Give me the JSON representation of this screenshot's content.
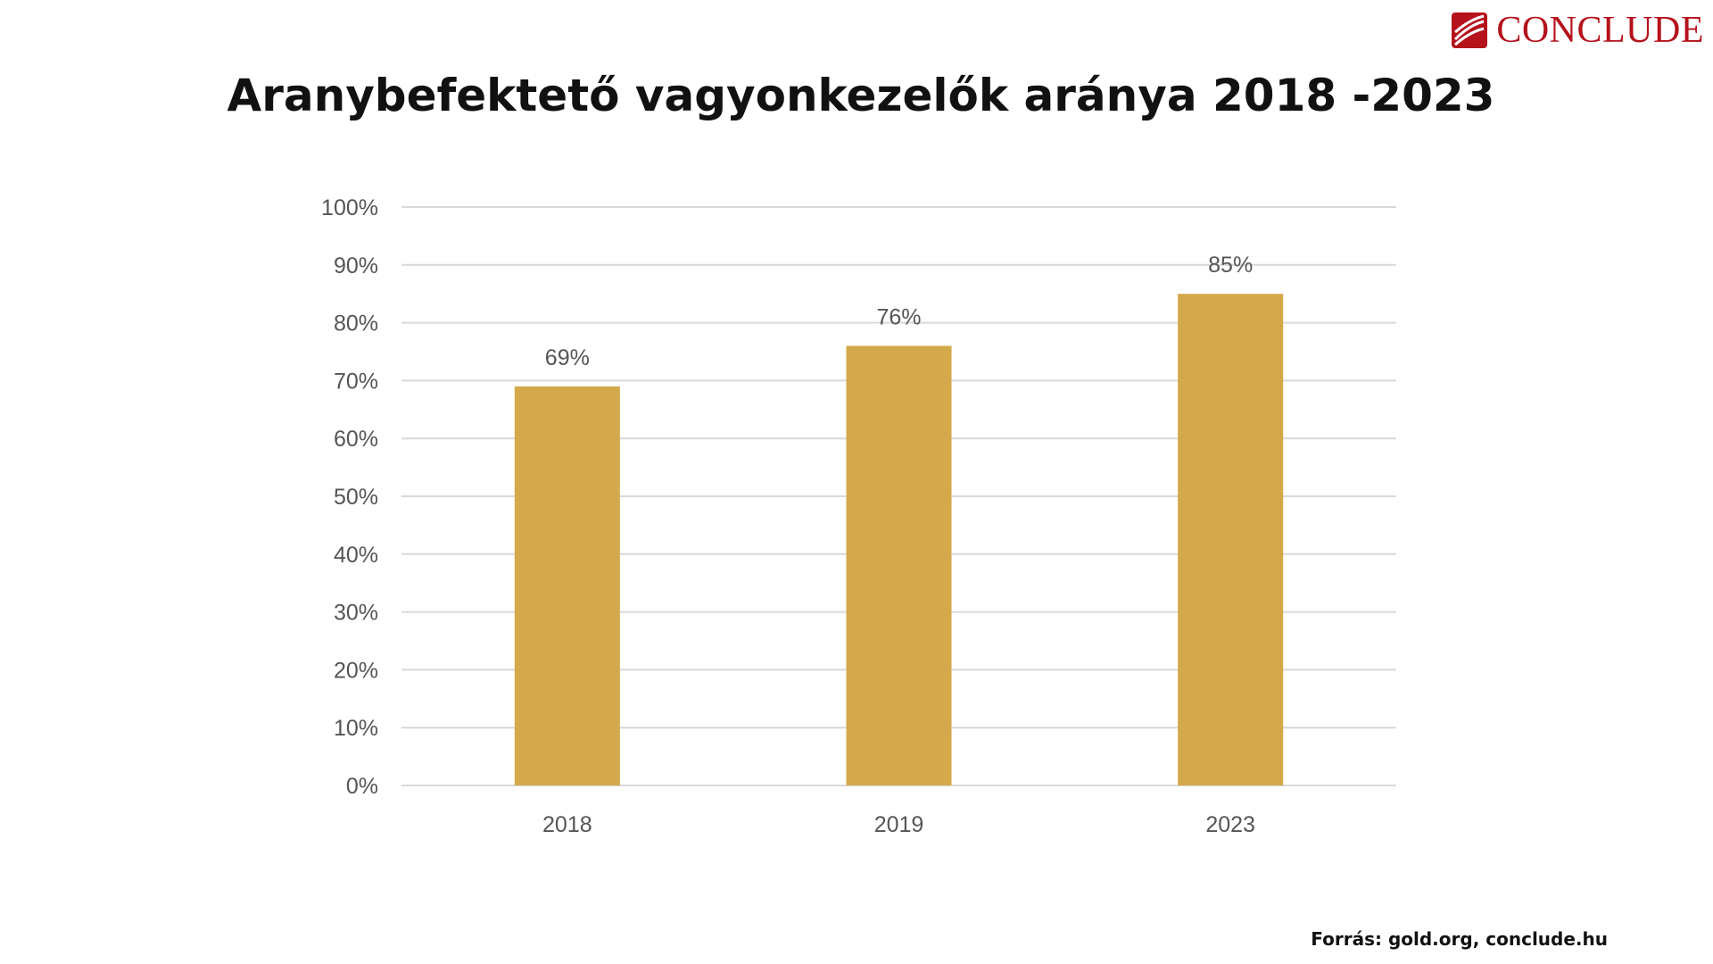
{
  "brand": {
    "name": "CONCLUDE",
    "color": "#b5121b",
    "icon": "conclude-logo-icon"
  },
  "title": "Aranybefektető vagyonkezelők aránya 2018 -2023",
  "source": "Forrás: gold.org, conclude.hu",
  "chart_data": {
    "type": "bar",
    "categories": [
      "2018",
      "2019",
      "2023"
    ],
    "values": [
      69,
      76,
      85
    ],
    "data_labels": [
      "69%",
      "76%",
      "85%"
    ],
    "ylim": [
      0,
      100
    ],
    "yticks": [
      0,
      10,
      20,
      30,
      40,
      50,
      60,
      70,
      80,
      90,
      100
    ],
    "ytick_labels": [
      "0%",
      "10%",
      "20%",
      "30%",
      "40%",
      "50%",
      "60%",
      "70%",
      "80%",
      "90%",
      "100%"
    ],
    "grid": true,
    "bar_color": "#d4a94b",
    "gridline_color": "#d9d9d9"
  }
}
